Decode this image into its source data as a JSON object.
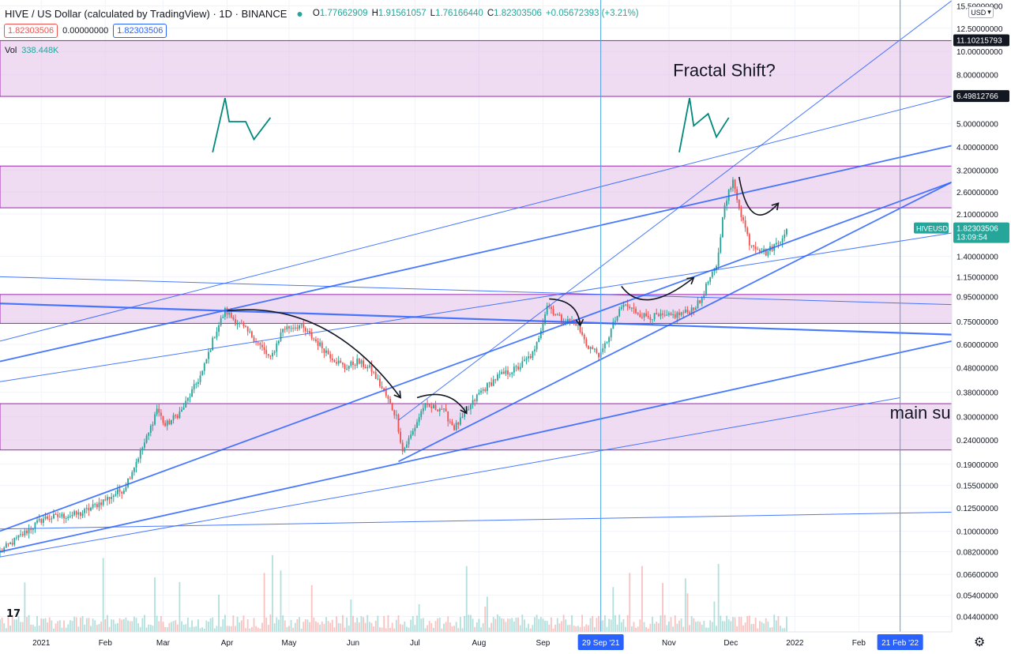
{
  "header": {
    "title": "HIVE / US Dollar (calculated by TradingView) · 1D · BINANCE",
    "ohlc": [
      {
        "k": "O",
        "v": "1.77662909"
      },
      {
        "k": "H",
        "v": "1.91561057"
      },
      {
        "k": "L",
        "v": "1.76166440"
      },
      {
        "k": "C",
        "v": "1.82303506"
      },
      {
        "k": "",
        "v": "+0.05672393 (+3.21%)"
      }
    ],
    "sell_price": "1.82303506",
    "spread": "0.00000000",
    "buy_price": "1.82303506",
    "vol_label": "Vol",
    "vol_value": "338.448K",
    "currency_button": "USD"
  },
  "colors": {
    "up": "#26a69a",
    "down": "#ef5350",
    "zone_fill": "#e1bee7",
    "zone_border": "#9c27b0",
    "trend_line": "#2962ff",
    "annotation": "#00897b",
    "accent": "#2962ff"
  },
  "icons": {
    "logo": "tradingview-logo-icon",
    "settings": "gear-icon",
    "status": "market-open-dot-icon"
  },
  "chart_data": {
    "type": "candlestick",
    "title": "HIVE / US Dollar (calculated by TradingView)",
    "interval": "1D",
    "exchange": "BINANCE",
    "scale": "log",
    "y_ticks": [
      "15.50000000",
      "12.50000000",
      "10.00000000",
      "8.00000000",
      "6.50000000",
      "5.00000000",
      "4.00000000",
      "3.20000000",
      "2.60000000",
      "2.10000000",
      "1.40000000",
      "1.15000000",
      "0.95000000",
      "0.75000000",
      "0.60000000",
      "0.48000000",
      "0.38000000",
      "0.30000000",
      "0.24000000",
      "0.19000000",
      "0.15500000",
      "0.12500000",
      "0.10000000",
      "0.08200000",
      "0.06600000",
      "0.05400000",
      "0.04400000"
    ],
    "x_ticks": [
      {
        "label": "2021",
        "date": "2021-01-01"
      },
      {
        "label": "Feb",
        "date": "2021-02-01"
      },
      {
        "label": "Mar",
        "date": "2021-03-01"
      },
      {
        "label": "Apr",
        "date": "2021-04-01"
      },
      {
        "label": "May",
        "date": "2021-05-01"
      },
      {
        "label": "Jun",
        "date": "2021-06-01"
      },
      {
        "label": "Jul",
        "date": "2021-07-01"
      },
      {
        "label": "Aug",
        "date": "2021-08-01"
      },
      {
        "label": "Sep",
        "date": "2021-09-01"
      },
      {
        "label": "Nov",
        "date": "2021-11-01"
      },
      {
        "label": "Dec",
        "date": "2021-12-01"
      },
      {
        "label": "2022",
        "date": "2022-01-01"
      },
      {
        "label": "Feb",
        "date": "2022-02-01"
      }
    ],
    "x_range": [
      "2020-12-12",
      "2022-03-18"
    ],
    "y_range": [
      0.038,
      16.4
    ],
    "price_labels": [
      {
        "label": "11.10215793",
        "value": 11.10215793,
        "style": "dark"
      },
      {
        "label": "6.49812766",
        "value": 6.49812766,
        "style": "dark"
      },
      {
        "label": "HIVEUSD",
        "value": 1.82303506,
        "style": "symbol"
      },
      {
        "label": "1.82303506",
        "value": 1.82303506,
        "style": "green",
        "sub": "13:09:54"
      }
    ],
    "date_labels": [
      {
        "label": "29 Sep '21",
        "date": "2021-09-29"
      },
      {
        "label": "21 Feb '22",
        "date": "2022-02-21"
      }
    ],
    "vertical_lines": [
      "2021-09-29",
      "2022-02-21"
    ],
    "zones": [
      {
        "low": 6.49812766,
        "high": 11.10215793
      },
      {
        "low": 2.23,
        "high": 3.33
      },
      {
        "low": 0.735,
        "high": 0.97
      },
      {
        "low": 0.218,
        "high": 0.34
      }
    ],
    "annotations": [
      {
        "text": "Fractal Shift?",
        "date": "2021-11-03",
        "price": 7.9
      },
      {
        "text": "main supp",
        "date": "2022-02-16",
        "price": 0.295
      }
    ],
    "anchors": [
      {
        "date": "2020-12-12",
        "price": 0.082
      },
      {
        "date": "2021-01-02",
        "price": 0.113
      },
      {
        "date": "2021-01-20",
        "price": 0.118
      },
      {
        "date": "2021-02-10",
        "price": 0.15
      },
      {
        "date": "2021-02-22",
        "price": 0.255
      },
      {
        "date": "2021-02-26",
        "price": 0.325
      },
      {
        "date": "2021-03-02",
        "price": 0.275
      },
      {
        "date": "2021-03-10",
        "price": 0.318
      },
      {
        "date": "2021-03-20",
        "price": 0.46
      },
      {
        "date": "2021-03-26",
        "price": 0.66
      },
      {
        "date": "2021-03-31",
        "price": 0.83
      },
      {
        "date": "2021-04-06",
        "price": 0.74
      },
      {
        "date": "2021-04-14",
        "price": 0.64
      },
      {
        "date": "2021-04-22",
        "price": 0.52
      },
      {
        "date": "2021-04-28",
        "price": 0.7
      },
      {
        "date": "2021-05-06",
        "price": 0.72
      },
      {
        "date": "2021-05-14",
        "price": 0.62
      },
      {
        "date": "2021-05-22",
        "price": 0.53
      },
      {
        "date": "2021-05-28",
        "price": 0.48
      },
      {
        "date": "2021-06-03",
        "price": 0.51
      },
      {
        "date": "2021-06-10",
        "price": 0.47
      },
      {
        "date": "2021-06-16",
        "price": 0.38
      },
      {
        "date": "2021-06-22",
        "price": 0.3
      },
      {
        "date": "2021-06-25",
        "price": 0.215
      },
      {
        "date": "2021-06-30",
        "price": 0.26
      },
      {
        "date": "2021-07-05",
        "price": 0.33
      },
      {
        "date": "2021-07-14",
        "price": 0.325
      },
      {
        "date": "2021-07-20",
        "price": 0.27
      },
      {
        "date": "2021-07-24",
        "price": 0.295
      },
      {
        "date": "2021-08-01",
        "price": 0.375
      },
      {
        "date": "2021-08-10",
        "price": 0.44
      },
      {
        "date": "2021-08-20",
        "price": 0.48
      },
      {
        "date": "2021-08-28",
        "price": 0.56
      },
      {
        "date": "2021-09-03",
        "price": 0.88
      },
      {
        "date": "2021-09-10",
        "price": 0.76
      },
      {
        "date": "2021-09-17",
        "price": 0.74
      },
      {
        "date": "2021-09-22",
        "price": 0.6
      },
      {
        "date": "2021-09-29",
        "price": 0.54
      },
      {
        "date": "2021-10-06",
        "price": 0.76
      },
      {
        "date": "2021-10-10",
        "price": 0.88
      },
      {
        "date": "2021-10-20",
        "price": 0.79
      },
      {
        "date": "2021-10-31",
        "price": 0.78
      },
      {
        "date": "2021-11-10",
        "price": 0.82
      },
      {
        "date": "2021-11-16",
        "price": 0.9
      },
      {
        "date": "2021-11-20",
        "price": 1.1
      },
      {
        "date": "2021-11-24",
        "price": 1.25
      },
      {
        "date": "2021-11-28",
        "price": 2.35
      },
      {
        "date": "2021-12-02",
        "price": 2.85
      },
      {
        "date": "2021-12-06",
        "price": 2.1
      },
      {
        "date": "2021-12-10",
        "price": 1.6
      },
      {
        "date": "2021-12-18",
        "price": 1.45
      },
      {
        "date": "2021-12-24",
        "price": 1.6
      },
      {
        "date": "2021-12-28",
        "price": 1.823
      }
    ]
  }
}
